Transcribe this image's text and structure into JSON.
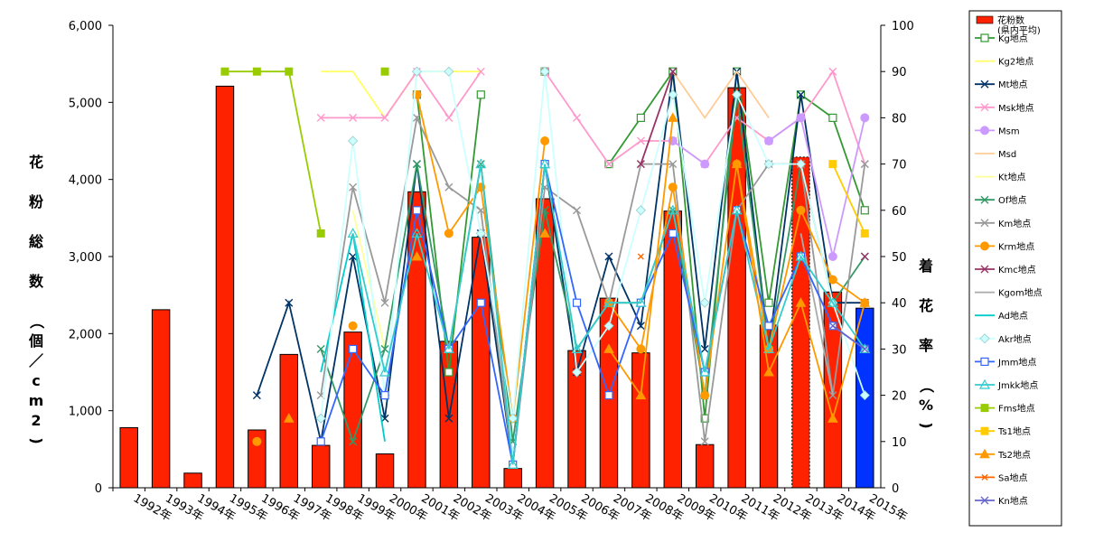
{
  "chart_data": {
    "type": "bar+line",
    "categories": [
      "1992年",
      "1993年",
      "1994年",
      "1995年",
      "1996年",
      "1997年",
      "1998年",
      "1999年",
      "2000年",
      "2001年",
      "2002年",
      "2003年",
      "2004年",
      "2005年",
      "2006年",
      "2007年",
      "2008年",
      "2009年",
      "2010年",
      "2011年",
      "2012年",
      "2013年",
      "2014年",
      "2015年"
    ],
    "y_left": {
      "label": "花 粉 総 数 （個／cm2)",
      "ylim": [
        0,
        6000
      ],
      "ticks": [
        "0",
        "1,000",
        "2,000",
        "3,000",
        "4,000",
        "5,000",
        "6,000"
      ]
    },
    "y_right": {
      "label": "着 花 率 （%)",
      "ylim": [
        0,
        100
      ],
      "ticks": [
        "0",
        "10",
        "20",
        "30",
        "40",
        "50",
        "60",
        "70",
        "80",
        "90",
        "100"
      ]
    },
    "bars": {
      "name": "花粉数\n(県内平均)",
      "color": "#ff2200",
      "values": [
        780,
        2310,
        190,
        5210,
        750,
        1730,
        550,
        2020,
        440,
        3840,
        1900,
        3250,
        250,
        3750,
        1780,
        2460,
        1750,
        3590,
        560,
        5190,
        2110,
        4290,
        2540,
        2330
      ],
      "special": {
        "2013年": "dashed",
        "2015年": "blue"
      }
    },
    "series": [
      {
        "name": "Kg地点",
        "color": "#339933",
        "marker": "square-open",
        "values": [
          null,
          null,
          null,
          null,
          null,
          null,
          null,
          null,
          null,
          85,
          25,
          85,
          null,
          90,
          null,
          70,
          80,
          90,
          15,
          90,
          40,
          85,
          80,
          60
        ]
      },
      {
        "name": "Kg2地点",
        "color": "#ffff66",
        "marker": "none",
        "values": [
          null,
          null,
          null,
          null,
          null,
          null,
          90,
          90,
          80,
          90,
          90,
          90,
          null,
          null,
          null,
          null,
          null,
          null,
          null,
          null,
          null,
          null,
          null,
          null
        ]
      },
      {
        "name": "Mt地点",
        "color": "#003366",
        "marker": "x",
        "values": [
          null,
          null,
          null,
          null,
          20,
          40,
          10,
          50,
          15,
          70,
          15,
          55,
          5,
          70,
          25,
          50,
          35,
          90,
          30,
          90,
          30,
          85,
          40,
          40
        ]
      },
      {
        "name": "Msk地点",
        "color": "#ff99cc",
        "marker": "x",
        "values": [
          null,
          null,
          null,
          null,
          null,
          null,
          80,
          80,
          80,
          90,
          80,
          90,
          null,
          90,
          80,
          70,
          75,
          75,
          70,
          80,
          75,
          80,
          90,
          70
        ]
      },
      {
        "name": "Msm",
        "color": "#cc99ff",
        "marker": "circle",
        "values": [
          null,
          null,
          null,
          null,
          null,
          null,
          null,
          null,
          null,
          null,
          null,
          null,
          null,
          null,
          null,
          null,
          null,
          75,
          70,
          null,
          75,
          80,
          50,
          80
        ]
      },
      {
        "name": "Msd",
        "color": "#ffcc99",
        "marker": "none",
        "values": [
          null,
          null,
          null,
          null,
          null,
          null,
          null,
          null,
          null,
          null,
          null,
          null,
          null,
          null,
          null,
          null,
          null,
          90,
          80,
          90,
          80,
          null,
          null,
          70
        ]
      },
      {
        "name": "Kt地点",
        "color": "#ffff99",
        "marker": "none",
        "values": [
          null,
          null,
          null,
          null,
          null,
          null,
          null,
          60,
          30,
          null,
          null,
          null,
          null,
          null,
          null,
          null,
          null,
          null,
          null,
          null,
          null,
          null,
          null,
          null
        ]
      },
      {
        "name": "Of地点",
        "color": "#339966",
        "marker": "x",
        "values": [
          null,
          null,
          null,
          null,
          null,
          null,
          30,
          10,
          30,
          70,
          30,
          70,
          10,
          60,
          30,
          40,
          40,
          60,
          20,
          85,
          30,
          70,
          40,
          50
        ]
      },
      {
        "name": "Km地点",
        "color": "#999999",
        "marker": "x",
        "values": [
          null,
          null,
          null,
          null,
          null,
          null,
          20,
          65,
          40,
          80,
          65,
          60,
          5,
          65,
          60,
          40,
          70,
          70,
          10,
          60,
          70,
          70,
          20,
          70
        ]
      },
      {
        "name": "Krm地点",
        "color": "#ff9900",
        "marker": "circle",
        "values": [
          null,
          null,
          null,
          null,
          10,
          null,
          null,
          35,
          null,
          85,
          55,
          65,
          15,
          75,
          null,
          40,
          30,
          65,
          20,
          70,
          30,
          60,
          45,
          40
        ]
      },
      {
        "name": "Kmc地点",
        "color": "#993366",
        "marker": "x",
        "values": [
          null,
          null,
          null,
          null,
          null,
          null,
          null,
          null,
          null,
          null,
          null,
          null,
          null,
          null,
          null,
          null,
          70,
          90,
          null,
          null,
          null,
          null,
          null,
          50
        ]
      },
      {
        "name": "Kgom地点",
        "color": "#aaaaaa",
        "marker": "none",
        "values": [
          null,
          null,
          null,
          null,
          null,
          null,
          null,
          null,
          40,
          null,
          null,
          null,
          null,
          null,
          null,
          null,
          null,
          null,
          null,
          null,
          null,
          55,
          20,
          null
        ]
      },
      {
        "name": "Ad地点",
        "color": "#00cccc",
        "marker": "none",
        "values": [
          null,
          null,
          null,
          null,
          null,
          null,
          25,
          55,
          10,
          null,
          null,
          null,
          null,
          null,
          null,
          null,
          null,
          null,
          null,
          null,
          null,
          null,
          null,
          null
        ]
      },
      {
        "name": "Akr地点",
        "color": "#ccffff",
        "marker": "diamond",
        "values": [
          null,
          null,
          null,
          null,
          null,
          null,
          15,
          75,
          20,
          90,
          90,
          55,
          15,
          90,
          25,
          35,
          60,
          85,
          40,
          85,
          70,
          70,
          40,
          20
        ]
      },
      {
        "name": "Jmm地点",
        "color": "#3366ff",
        "marker": "square-open",
        "values": [
          null,
          null,
          null,
          null,
          null,
          null,
          10,
          30,
          20,
          60,
          30,
          40,
          5,
          70,
          40,
          20,
          40,
          55,
          25,
          60,
          35,
          50,
          35,
          30
        ]
      },
      {
        "name": "Jmkk地点",
        "color": "#33cccc",
        "marker": "triangle-open",
        "values": [
          null,
          null,
          null,
          null,
          null,
          null,
          null,
          55,
          25,
          55,
          30,
          70,
          5,
          70,
          30,
          40,
          40,
          60,
          25,
          60,
          30,
          50,
          40,
          30
        ]
      },
      {
        "name": "Fms地点",
        "color": "#99cc00",
        "marker": "square",
        "values": [
          null,
          null,
          null,
          90,
          90,
          90,
          55,
          null,
          90,
          null,
          null,
          null,
          null,
          null,
          null,
          null,
          null,
          null,
          null,
          null,
          null,
          null,
          null,
          null
        ]
      },
      {
        "name": "Ts1地点",
        "color": "#ffcc00",
        "marker": "square",
        "values": [
          null,
          null,
          null,
          null,
          null,
          null,
          null,
          null,
          null,
          null,
          null,
          null,
          null,
          null,
          null,
          null,
          null,
          null,
          null,
          null,
          null,
          null,
          70,
          55
        ]
      },
      {
        "name": "Ts2地点",
        "color": "#ff9900",
        "marker": "triangle",
        "values": [
          null,
          null,
          null,
          null,
          null,
          15,
          null,
          null,
          null,
          50,
          null,
          null,
          null,
          55,
          null,
          30,
          20,
          80,
          null,
          70,
          25,
          40,
          15,
          40
        ]
      },
      {
        "name": "Sa地点",
        "color": "#ff6600",
        "marker": "x-small",
        "values": [
          null,
          null,
          null,
          null,
          null,
          null,
          null,
          null,
          null,
          null,
          null,
          null,
          null,
          null,
          null,
          null,
          50,
          null,
          null,
          null,
          null,
          null,
          null,
          null
        ]
      },
      {
        "name": "Kn地点",
        "color": "#6666cc",
        "marker": "x",
        "values": [
          null,
          null,
          null,
          null,
          null,
          null,
          null,
          null,
          null,
          null,
          null,
          null,
          null,
          null,
          null,
          null,
          null,
          null,
          null,
          null,
          null,
          null,
          35,
          30
        ]
      }
    ]
  }
}
